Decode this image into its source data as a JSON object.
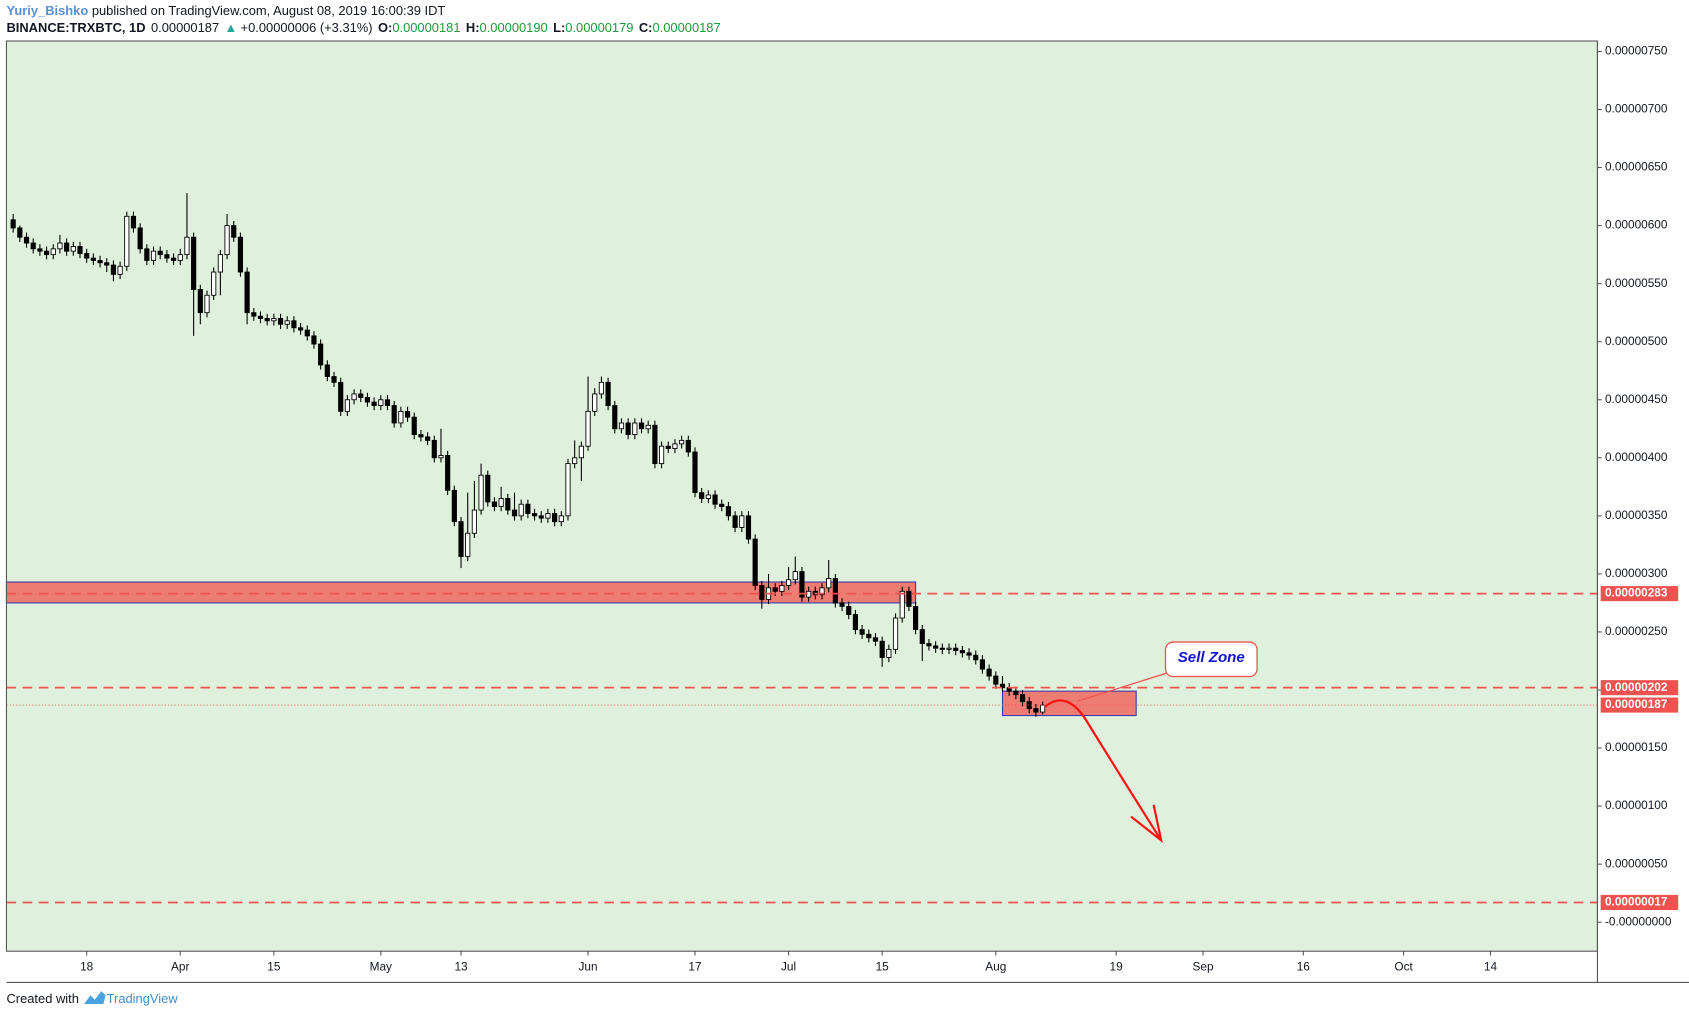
{
  "chart_data": {
    "type": "candlestick",
    "header": {
      "author": "Yuriy_Bishko",
      "published": " published on TradingView.com, August 08, 2019 16:00:39 IDT",
      "symbol": "BINANCE:TRXBTC, 1D",
      "last": "0.00000187",
      "change_arrow": "▲",
      "change": "+0.00000006 (+3.31%)",
      "ohlc": [
        {
          "key": "O:",
          "value": "0.00000181"
        },
        {
          "key": "H:",
          "value": "0.00000190"
        },
        {
          "key": "L:",
          "value": "0.00000179"
        },
        {
          "key": "C:",
          "value": "0.00000187"
        }
      ]
    },
    "x": [
      "2019-03-07",
      "2019-03-08",
      "2019-03-09",
      "2019-03-10",
      "2019-03-11",
      "2019-03-12",
      "2019-03-13",
      "2019-03-14",
      "2019-03-15",
      "2019-03-16",
      "2019-03-17",
      "2019-03-18",
      "2019-03-19",
      "2019-03-20",
      "2019-03-21",
      "2019-03-22",
      "2019-03-23",
      "2019-03-24",
      "2019-03-25",
      "2019-03-26",
      "2019-03-27",
      "2019-03-28",
      "2019-03-29",
      "2019-03-30",
      "2019-03-31",
      "2019-04-01",
      "2019-04-02",
      "2019-04-03",
      "2019-04-04",
      "2019-04-05",
      "2019-04-06",
      "2019-04-07",
      "2019-04-08",
      "2019-04-09",
      "2019-04-10",
      "2019-04-11",
      "2019-04-12",
      "2019-04-13",
      "2019-04-14",
      "2019-04-15",
      "2019-04-16",
      "2019-04-17",
      "2019-04-18",
      "2019-04-19",
      "2019-04-20",
      "2019-04-21",
      "2019-04-22",
      "2019-04-23",
      "2019-04-24",
      "2019-04-25",
      "2019-04-26",
      "2019-04-27",
      "2019-04-28",
      "2019-04-29",
      "2019-04-30",
      "2019-05-01",
      "2019-05-02",
      "2019-05-03",
      "2019-05-04",
      "2019-05-05",
      "2019-05-06",
      "2019-05-07",
      "2019-05-08",
      "2019-05-09",
      "2019-05-10",
      "2019-05-11",
      "2019-05-12",
      "2019-05-13",
      "2019-05-14",
      "2019-05-15",
      "2019-05-16",
      "2019-05-17",
      "2019-05-18",
      "2019-05-19",
      "2019-05-20",
      "2019-05-21",
      "2019-05-22",
      "2019-05-23",
      "2019-05-24",
      "2019-05-25",
      "2019-05-26",
      "2019-05-27",
      "2019-05-28",
      "2019-05-29",
      "2019-05-30",
      "2019-05-31",
      "2019-06-01",
      "2019-06-02",
      "2019-06-03",
      "2019-06-04",
      "2019-06-05",
      "2019-06-06",
      "2019-06-07",
      "2019-06-08",
      "2019-06-09",
      "2019-06-10",
      "2019-06-11",
      "2019-06-12",
      "2019-06-13",
      "2019-06-14",
      "2019-06-15",
      "2019-06-16",
      "2019-06-17",
      "2019-06-18",
      "2019-06-19",
      "2019-06-20",
      "2019-06-21",
      "2019-06-22",
      "2019-06-23",
      "2019-06-24",
      "2019-06-25",
      "2019-06-26",
      "2019-06-27",
      "2019-06-28",
      "2019-06-29",
      "2019-06-30",
      "2019-07-01",
      "2019-07-02",
      "2019-07-03",
      "2019-07-04",
      "2019-07-05",
      "2019-07-06",
      "2019-07-07",
      "2019-07-08",
      "2019-07-09",
      "2019-07-10",
      "2019-07-11",
      "2019-07-12",
      "2019-07-13",
      "2019-07-14",
      "2019-07-15",
      "2019-07-16",
      "2019-07-17",
      "2019-07-18",
      "2019-07-19",
      "2019-07-20",
      "2019-07-21",
      "2019-07-22",
      "2019-07-23",
      "2019-07-24",
      "2019-07-25",
      "2019-07-26",
      "2019-07-27",
      "2019-07-28",
      "2019-07-29",
      "2019-07-30",
      "2019-07-31",
      "2019-08-01",
      "2019-08-02",
      "2019-08-03",
      "2019-08-04",
      "2019-08-05",
      "2019-08-06",
      "2019-08-07",
      "2019-08-08"
    ],
    "open": [
      6.05e-06,
      5.98e-06,
      5.9e-06,
      5.85e-06,
      5.8e-06,
      5.78e-06,
      5.75e-06,
      5.8e-06,
      5.85e-06,
      5.78e-06,
      5.82e-06,
      5.76e-06,
      5.72e-06,
      5.7e-06,
      5.68e-06,
      5.66e-06,
      5.58e-06,
      5.65e-06,
      6.08e-06,
      5.98e-06,
      5.8e-06,
      5.7e-06,
      5.78e-06,
      5.75e-06,
      5.72e-06,
      5.7e-06,
      5.75e-06,
      5.9e-06,
      5.45e-06,
      5.25e-06,
      5.4e-06,
      5.6e-06,
      5.75e-06,
      6e-06,
      5.9e-06,
      5.6e-06,
      5.25e-06,
      5.22e-06,
      5.2e-06,
      5.18e-06,
      5.2e-06,
      5.15e-06,
      5.18e-06,
      5.12e-06,
      5.1e-06,
      5.05e-06,
      4.98e-06,
      4.8e-06,
      4.7e-06,
      4.65e-06,
      4.4e-06,
      4.5e-06,
      4.55e-06,
      4.52e-06,
      4.48e-06,
      4.45e-06,
      4.5e-06,
      4.45e-06,
      4.3e-06,
      4.4e-06,
      4.35e-06,
      4.2e-06,
      4.18e-06,
      4.15e-06,
      4e-06,
      4.02e-06,
      3.72e-06,
      3.45e-06,
      3.15e-06,
      3.35e-06,
      3.55e-06,
      3.85e-06,
      3.62e-06,
      3.58e-06,
      3.65e-06,
      3.55e-06,
      3.5e-06,
      3.6e-06,
      3.52e-06,
      3.5e-06,
      3.48e-06,
      3.52e-06,
      3.45e-06,
      3.5e-06,
      3.95e-06,
      4e-06,
      4.1e-06,
      4.4e-06,
      4.55e-06,
      4.65e-06,
      4.45e-06,
      4.25e-06,
      4.3e-06,
      4.2e-06,
      4.3e-06,
      4.25e-06,
      4.28e-06,
      3.95e-06,
      4.1e-06,
      4.08e-06,
      4.12e-06,
      4.15e-06,
      4.05e-06,
      3.7e-06,
      3.65e-06,
      3.68e-06,
      3.6e-06,
      3.58e-06,
      3.5e-06,
      3.4e-06,
      3.5e-06,
      3.3e-06,
      2.9e-06,
      2.78e-06,
      2.88e-06,
      2.85e-06,
      2.9e-06,
      2.95e-06,
      3.02e-06,
      2.8e-06,
      2.85e-06,
      2.82e-06,
      2.88e-06,
      2.96e-06,
      2.75e-06,
      2.72e-06,
      2.65e-06,
      2.52e-06,
      2.48e-06,
      2.45e-06,
      2.42e-06,
      2.28e-06,
      2.35e-06,
      2.62e-06,
      2.85e-06,
      2.72e-06,
      2.52e-06,
      2.4e-06,
      2.38e-06,
      2.36e-06,
      2.35e-06,
      2.36e-06,
      2.34e-06,
      2.32e-06,
      2.3e-06,
      2.26e-06,
      2.18e-06,
      2.12e-06,
      2.05e-06,
      2.02e-06,
      1.99e-06,
      1.96e-06,
      1.9e-06,
      1.84e-06,
      1.81e-06
    ],
    "high": [
      6.1e-06,
      6e-06,
      5.94e-06,
      5.89e-06,
      5.84e-06,
      5.82e-06,
      5.84e-06,
      5.92e-06,
      5.89e-06,
      5.86e-06,
      5.86e-06,
      5.8e-06,
      5.76e-06,
      5.74e-06,
      5.72e-06,
      5.7e-06,
      5.69e-06,
      6.12e-06,
      6.12e-06,
      6.02e-06,
      5.84e-06,
      5.82e-06,
      5.82e-06,
      5.79e-06,
      5.76e-06,
      5.8e-06,
      6.28e-06,
      5.94e-06,
      5.49e-06,
      5.44e-06,
      5.64e-06,
      5.79e-06,
      6.1e-06,
      6.04e-06,
      5.94e-06,
      5.64e-06,
      5.29e-06,
      5.26e-06,
      5.24e-06,
      5.24e-06,
      5.24e-06,
      5.22e-06,
      5.22e-06,
      5.16e-06,
      5.14e-06,
      5.09e-06,
      5.02e-06,
      4.84e-06,
      4.74e-06,
      4.69e-06,
      4.54e-06,
      4.59e-06,
      4.59e-06,
      4.56e-06,
      4.52e-06,
      4.54e-06,
      4.54e-06,
      4.49e-06,
      4.44e-06,
      4.44e-06,
      4.39e-06,
      4.24e-06,
      4.22e-06,
      4.19e-06,
      4.25e-06,
      4.06e-06,
      3.76e-06,
      3.49e-06,
      3.7e-06,
      3.8e-06,
      3.95e-06,
      3.89e-06,
      3.66e-06,
      3.75e-06,
      3.69e-06,
      3.7e-06,
      3.64e-06,
      3.64e-06,
      3.56e-06,
      3.54e-06,
      3.56e-06,
      3.56e-06,
      3.54e-06,
      3.99e-06,
      4.15e-06,
      4.14e-06,
      4.7e-06,
      4.6e-06,
      4.7e-06,
      4.69e-06,
      4.49e-06,
      4.34e-06,
      4.34e-06,
      4.34e-06,
      4.34e-06,
      4.32e-06,
      4.32e-06,
      4.14e-06,
      4.14e-06,
      4.16e-06,
      4.19e-06,
      4.19e-06,
      4.09e-06,
      3.74e-06,
      3.72e-06,
      3.72e-06,
      3.64e-06,
      3.62e-06,
      3.54e-06,
      3.54e-06,
      3.54e-06,
      3.34e-06,
      2.94e-06,
      3e-06,
      2.92e-06,
      2.94e-06,
      3.06e-06,
      3.15e-06,
      3.06e-06,
      2.89e-06,
      2.89e-06,
      2.92e-06,
      3.12e-06,
      3e-06,
      2.79e-06,
      2.76e-06,
      2.69e-06,
      2.56e-06,
      2.52e-06,
      2.49e-06,
      2.46e-06,
      2.39e-06,
      2.66e-06,
      2.89e-06,
      2.89e-06,
      2.76e-06,
      2.56e-06,
      2.44e-06,
      2.42e-06,
      2.4e-06,
      2.4e-06,
      2.4e-06,
      2.38e-06,
      2.36e-06,
      2.34e-06,
      2.3e-06,
      2.22e-06,
      2.16e-06,
      2.12e-06,
      2.06e-06,
      2.03e-06,
      2e-06,
      1.94e-06,
      1.88e-06,
      1.9e-06
    ],
    "low": [
      5.94e-06,
      5.86e-06,
      5.81e-06,
      5.76e-06,
      5.74e-06,
      5.71e-06,
      5.71e-06,
      5.76e-06,
      5.74e-06,
      5.74e-06,
      5.72e-06,
      5.68e-06,
      5.66e-06,
      5.64e-06,
      5.6e-06,
      5.52e-06,
      5.54e-06,
      5.61e-06,
      5.94e-06,
      5.76e-06,
      5.66e-06,
      5.66e-06,
      5.71e-06,
      5.68e-06,
      5.66e-06,
      5.66e-06,
      5.71e-06,
      5.05e-06,
      5.15e-06,
      5.21e-06,
      5.36e-06,
      5.4e-06,
      5.71e-06,
      5.86e-06,
      5.56e-06,
      5.15e-06,
      5.18e-06,
      5.16e-06,
      5.14e-06,
      5.14e-06,
      5.11e-06,
      5.11e-06,
      5.08e-06,
      5.06e-06,
      5.01e-06,
      4.94e-06,
      4.76e-06,
      4.66e-06,
      4.61e-06,
      4.36e-06,
      4.36e-06,
      4.46e-06,
      4.48e-06,
      4.44e-06,
      4.41e-06,
      4.41e-06,
      4.41e-06,
      4.26e-06,
      4.26e-06,
      4.31e-06,
      4.16e-06,
      4.14e-06,
      4.11e-06,
      3.96e-06,
      3.96e-06,
      3.68e-06,
      3.41e-06,
      3.05e-06,
      3.11e-06,
      3.31e-06,
      3.51e-06,
      3.58e-06,
      3.54e-06,
      3.54e-06,
      3.51e-06,
      3.46e-06,
      3.46e-06,
      3.48e-06,
      3.46e-06,
      3.44e-06,
      3.44e-06,
      3.41e-06,
      3.41e-06,
      3.46e-06,
      3.91e-06,
      3.8e-06,
      4.06e-06,
      4.36e-06,
      4.51e-06,
      4.41e-06,
      4.21e-06,
      4.21e-06,
      4.16e-06,
      4.16e-06,
      4.21e-06,
      4.21e-06,
      3.91e-06,
      3.91e-06,
      4.04e-06,
      4.04e-06,
      4.08e-06,
      4.01e-06,
      3.66e-06,
      3.61e-06,
      3.61e-06,
      3.56e-06,
      3.54e-06,
      3.46e-06,
      3.36e-06,
      3.36e-06,
      3.26e-06,
      2.86e-06,
      2.7e-06,
      2.74e-06,
      2.81e-06,
      2.81e-06,
      2.86e-06,
      2.91e-06,
      2.76e-06,
      2.76e-06,
      2.78e-06,
      2.78e-06,
      2.84e-06,
      2.71e-06,
      2.68e-06,
      2.61e-06,
      2.48e-06,
      2.44e-06,
      2.41e-06,
      2.38e-06,
      2.2e-06,
      2.24e-06,
      2.31e-06,
      2.58e-06,
      2.68e-06,
      2.48e-06,
      2.25e-06,
      2.34e-06,
      2.32e-06,
      2.31e-06,
      2.31e-06,
      2.3e-06,
      2.28e-06,
      2.26e-06,
      2.22e-06,
      2.14e-06,
      2.08e-06,
      2.01e-06,
      1.98e-06,
      1.95e-06,
      1.92e-06,
      1.86e-06,
      1.8e-06,
      1.77e-06,
      1.79e-06
    ],
    "close": [
      5.98e-06,
      5.9e-06,
      5.85e-06,
      5.8e-06,
      5.78e-06,
      5.75e-06,
      5.8e-06,
      5.85e-06,
      5.78e-06,
      5.82e-06,
      5.76e-06,
      5.72e-06,
      5.7e-06,
      5.68e-06,
      5.66e-06,
      5.58e-06,
      5.65e-06,
      6.08e-06,
      5.98e-06,
      5.8e-06,
      5.7e-06,
      5.78e-06,
      5.75e-06,
      5.72e-06,
      5.7e-06,
      5.75e-06,
      5.9e-06,
      5.45e-06,
      5.25e-06,
      5.4e-06,
      5.6e-06,
      5.75e-06,
      6e-06,
      5.9e-06,
      5.6e-06,
      5.25e-06,
      5.22e-06,
      5.2e-06,
      5.18e-06,
      5.2e-06,
      5.15e-06,
      5.18e-06,
      5.12e-06,
      5.1e-06,
      5.05e-06,
      4.98e-06,
      4.8e-06,
      4.7e-06,
      4.65e-06,
      4.4e-06,
      4.5e-06,
      4.55e-06,
      4.52e-06,
      4.48e-06,
      4.45e-06,
      4.5e-06,
      4.45e-06,
      4.3e-06,
      4.4e-06,
      4.35e-06,
      4.2e-06,
      4.18e-06,
      4.15e-06,
      4e-06,
      4.02e-06,
      3.72e-06,
      3.45e-06,
      3.15e-06,
      3.35e-06,
      3.55e-06,
      3.85e-06,
      3.62e-06,
      3.58e-06,
      3.65e-06,
      3.55e-06,
      3.5e-06,
      3.6e-06,
      3.52e-06,
      3.5e-06,
      3.48e-06,
      3.52e-06,
      3.45e-06,
      3.5e-06,
      3.95e-06,
      4e-06,
      4.1e-06,
      4.4e-06,
      4.55e-06,
      4.65e-06,
      4.45e-06,
      4.25e-06,
      4.3e-06,
      4.2e-06,
      4.3e-06,
      4.25e-06,
      4.28e-06,
      3.95e-06,
      4.1e-06,
      4.08e-06,
      4.12e-06,
      4.15e-06,
      4.05e-06,
      3.7e-06,
      3.65e-06,
      3.68e-06,
      3.6e-06,
      3.58e-06,
      3.5e-06,
      3.4e-06,
      3.5e-06,
      3.3e-06,
      2.9e-06,
      2.78e-06,
      2.88e-06,
      2.85e-06,
      2.9e-06,
      2.95e-06,
      3.02e-06,
      2.8e-06,
      2.85e-06,
      2.82e-06,
      2.88e-06,
      2.96e-06,
      2.75e-06,
      2.72e-06,
      2.65e-06,
      2.52e-06,
      2.48e-06,
      2.45e-06,
      2.42e-06,
      2.28e-06,
      2.35e-06,
      2.62e-06,
      2.85e-06,
      2.72e-06,
      2.52e-06,
      2.4e-06,
      2.38e-06,
      2.36e-06,
      2.35e-06,
      2.36e-06,
      2.34e-06,
      2.32e-06,
      2.3e-06,
      2.26e-06,
      2.18e-06,
      2.12e-06,
      2.05e-06,
      2.02e-06,
      1.99e-06,
      1.96e-06,
      1.9e-06,
      1.84e-06,
      1.81e-06,
      1.87e-06
    ],
    "up_color": "#ffffff",
    "down_color": "#000000",
    "xlim": [
      "2019-03-06",
      "2019-10-30"
    ],
    "xticks": [
      {
        "value": "2019-03-18",
        "label": "18"
      },
      {
        "value": "2019-04-01",
        "label": "Apr"
      },
      {
        "value": "2019-04-15",
        "label": "15"
      },
      {
        "value": "2019-05-01",
        "label": "May"
      },
      {
        "value": "2019-05-13",
        "label": "13"
      },
      {
        "value": "2019-06-01",
        "label": "Jun"
      },
      {
        "value": "2019-06-17",
        "label": "17"
      },
      {
        "value": "2019-07-01",
        "label": "Jul"
      },
      {
        "value": "2019-07-15",
        "label": "15"
      },
      {
        "value": "2019-08-01",
        "label": "Aug"
      },
      {
        "value": "2019-08-19",
        "label": "19"
      },
      {
        "value": "2019-09-01",
        "label": "Sep"
      },
      {
        "value": "2019-09-16",
        "label": "16"
      },
      {
        "value": "2019-10-01",
        "label": "Oct"
      },
      {
        "value": "2019-10-14",
        "label": "14"
      }
    ],
    "ylim": [
      -2.5e-07,
      7.59e-06
    ],
    "yticks": [
      {
        "value": 7.5e-06,
        "label": "0.00000750"
      },
      {
        "value": 7e-06,
        "label": "0.00000700"
      },
      {
        "value": 6.5e-06,
        "label": "0.00000650"
      },
      {
        "value": 6e-06,
        "label": "0.00000600"
      },
      {
        "value": 5.5e-06,
        "label": "0.00000550"
      },
      {
        "value": 5e-06,
        "label": "0.00000500"
      },
      {
        "value": 4.5e-06,
        "label": "0.00000450"
      },
      {
        "value": 4e-06,
        "label": "0.00000400"
      },
      {
        "value": 3.5e-06,
        "label": "0.00000350"
      },
      {
        "value": 3e-06,
        "label": "0.00000300"
      },
      {
        "value": 2.5e-06,
        "label": "0.00000250"
      },
      {
        "value": 2e-06,
        "label": "0.00000200"
      },
      {
        "value": 1.5e-06,
        "label": "0.00000150"
      },
      {
        "value": 1e-06,
        "label": "0.00000100"
      },
      {
        "value": 5e-07,
        "label": "0.00000050"
      },
      {
        "value": 0,
        "label": "-0.00000000"
      }
    ],
    "levels": [
      {
        "value": 2.83e-06,
        "label": "0.00000283"
      },
      {
        "value": 2.02e-06,
        "label": "0.00000202"
      },
      {
        "value": 1.7e-07,
        "label": "0.00000017"
      }
    ],
    "level_color": "#f0534f",
    "last_price": {
      "value": 1.87e-06,
      "label": "0.00000187"
    },
    "zones": [
      {
        "start": "2019-03-06",
        "end": "2019-07-20",
        "top": 2.93e-06,
        "bottom": 2.75e-06
      },
      {
        "start": "2019-08-02",
        "end": "2019-08-22",
        "top": 1.99e-06,
        "bottom": 1.78e-06
      }
    ],
    "zone_color": "#f0675f",
    "annotation": "Sell Zone",
    "footer": {
      "created": "Created with",
      "brand": "TradingView"
    }
  }
}
